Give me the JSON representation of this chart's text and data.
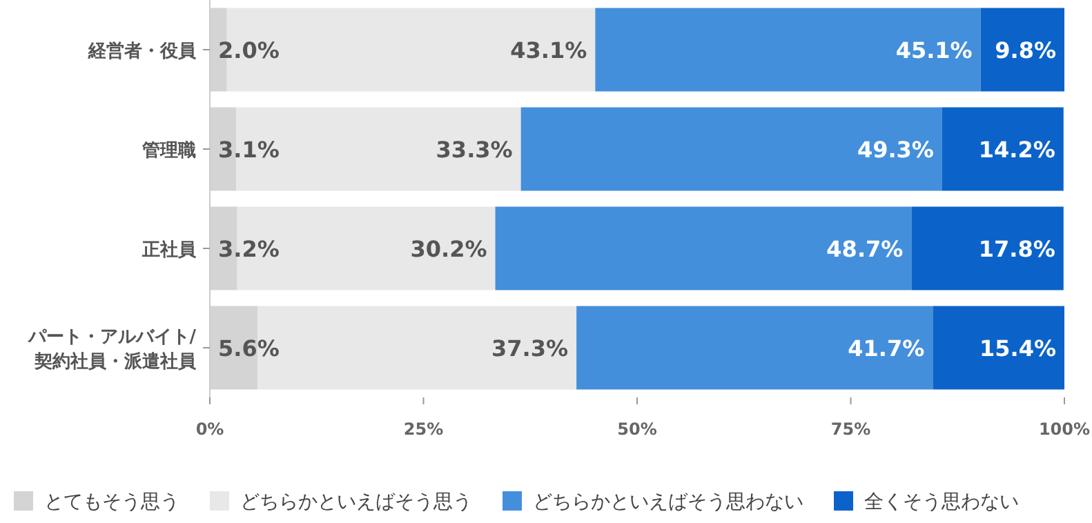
{
  "chart_data": {
    "type": "bar",
    "orientation": "horizontal",
    "stacked": true,
    "legend": "bottom",
    "categories": [
      "経営者・役員",
      "管理職",
      "正社員",
      "パート・アルバイト/\n契約社員・派遣社員"
    ],
    "series": [
      {
        "name": "とてもそう思う",
        "color": "#d4d4d4",
        "values": [
          2.0,
          3.1,
          3.2,
          5.6
        ],
        "value_labels": [
          "2.0%",
          "3.1%",
          "3.2%",
          "5.6%"
        ]
      },
      {
        "name": "どちらかといえばそう思う",
        "color": "#e8e8e8",
        "values": [
          43.1,
          33.3,
          30.2,
          37.3
        ],
        "value_labels": [
          "43.1%",
          "33.3%",
          "30.2%",
          "37.3%"
        ]
      },
      {
        "name": "どちらかといえばそう思わない",
        "color": "#448fdc",
        "values": [
          45.1,
          49.3,
          48.7,
          41.7
        ],
        "value_labels": [
          "45.1%",
          "49.3%",
          "48.7%",
          "41.7%"
        ]
      },
      {
        "name": "全くそう思わない",
        "color": "#0b63c9",
        "values": [
          9.8,
          14.2,
          17.8,
          15.4
        ],
        "value_labels": [
          "9.8%",
          "14.2%",
          "17.8%",
          "15.4%"
        ]
      }
    ],
    "xlim": [
      0,
      100
    ],
    "xticks": [
      {
        "value": 0,
        "label": "0%"
      },
      {
        "value": 25,
        "label": "25%"
      },
      {
        "value": 50,
        "label": "50%"
      },
      {
        "value": 75,
        "label": "75%"
      },
      {
        "value": 100,
        "label": "100%"
      }
    ]
  }
}
